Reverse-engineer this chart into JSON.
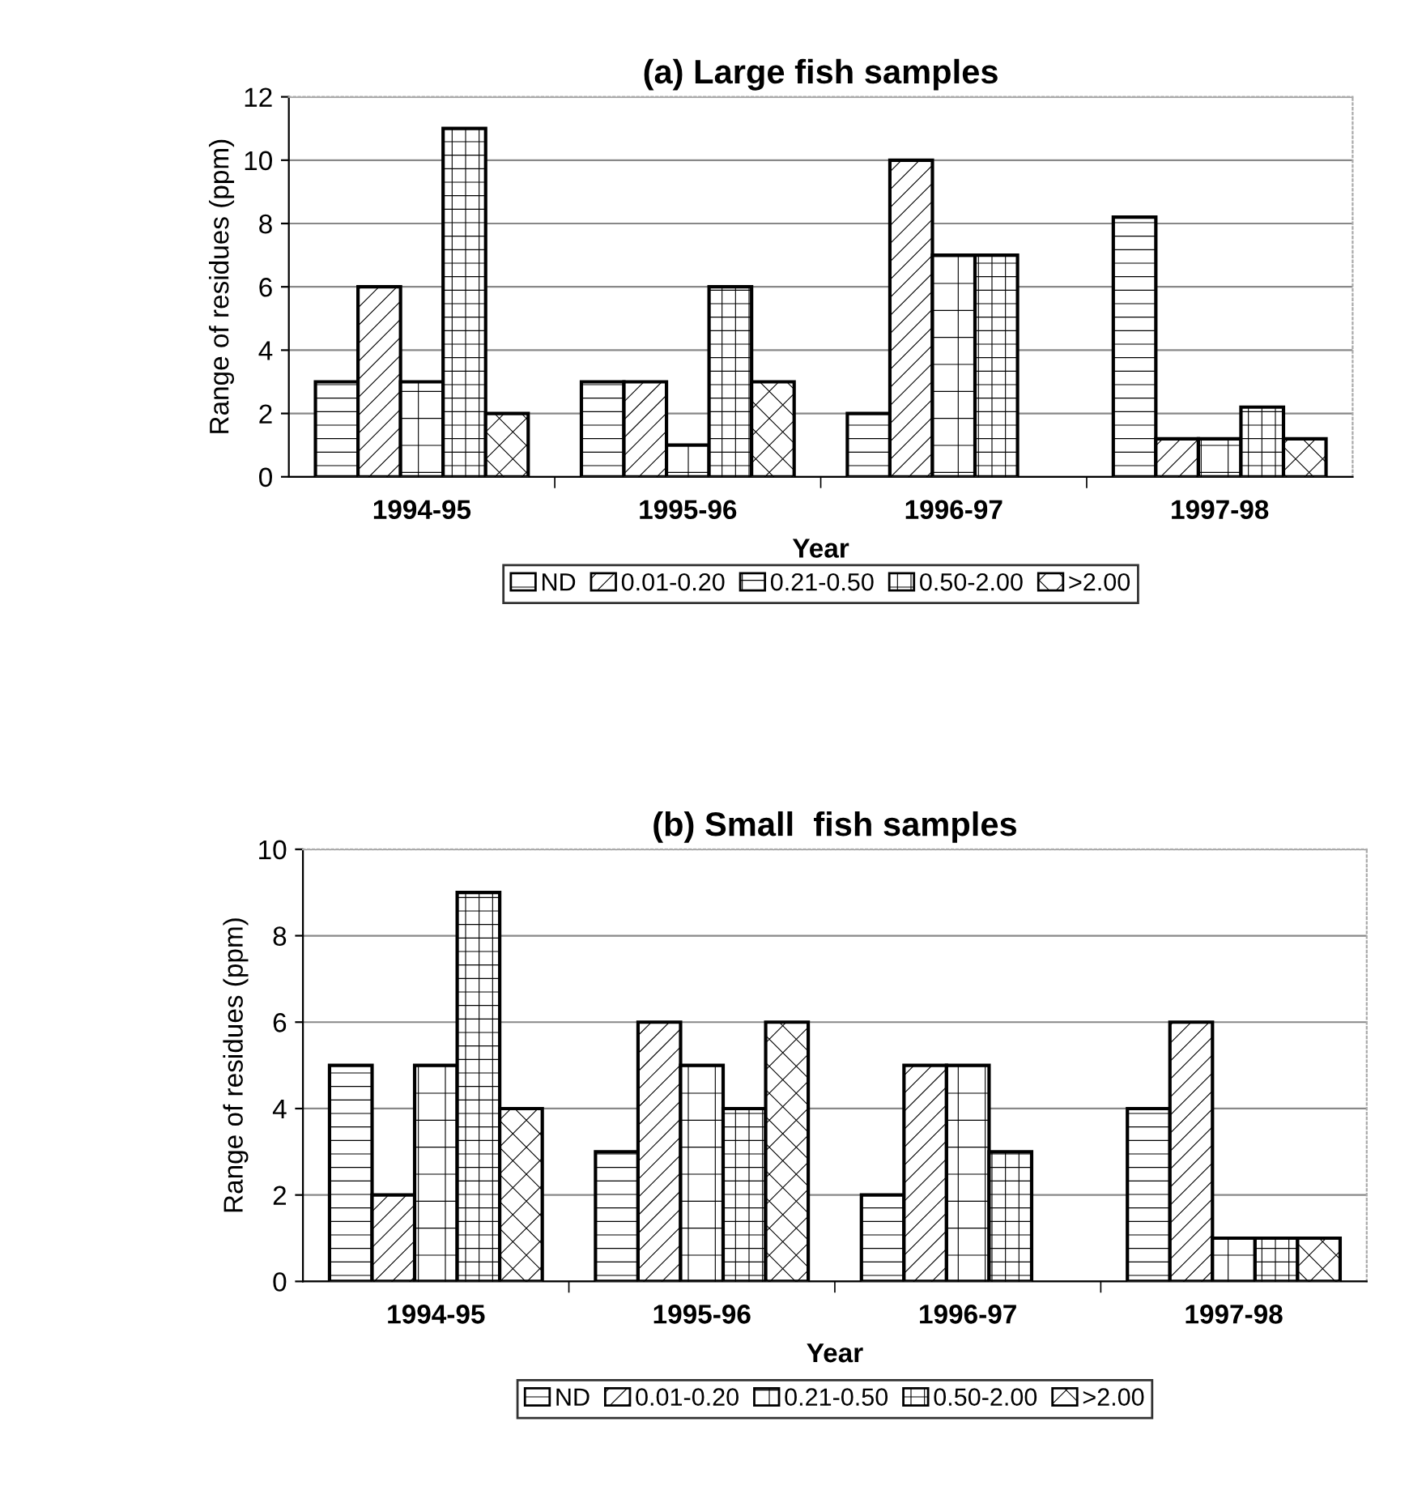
{
  "chart_data": [
    {
      "type": "bar",
      "title": "(a) Large fish samples",
      "xlabel": "Year",
      "ylabel": "Range of residues (ppm)",
      "categories": [
        "1994-95",
        "1995-96",
        "1996-97",
        "1997-98"
      ],
      "series": [
        {
          "name": "ND",
          "color": "#000000",
          "values": [
            3,
            3,
            2,
            8.2
          ]
        },
        {
          "name": "0.01-0.20",
          "color": "#000000",
          "values": [
            6,
            3,
            10,
            1.2
          ]
        },
        {
          "name": "0.21-0.50",
          "color": "#000000",
          "values": [
            3,
            1,
            7,
            1.2
          ]
        },
        {
          "name": "0.50-2.00",
          "color": "#000000",
          "values": [
            11,
            6,
            7,
            2.2
          ]
        },
        {
          "name": ">2.00",
          "color": "#000000",
          "values": [
            2,
            3,
            null,
            1.2
          ]
        }
      ],
      "ylim": [
        0,
        12
      ],
      "yticks": [
        0,
        2,
        4,
        6,
        8,
        10,
        12
      ],
      "grid": "y",
      "legend": "bottom"
    },
    {
      "type": "bar",
      "title": "(b) Small  fish samples",
      "xlabel": "Year",
      "ylabel": "Range of residues (ppm)",
      "categories": [
        "1994-95",
        "1995-96",
        "1996-97",
        "1997-98"
      ],
      "series": [
        {
          "name": "ND",
          "color": "#000000",
          "values": [
            5,
            3,
            2,
            4
          ]
        },
        {
          "name": "0.01-0.20",
          "color": "#000000",
          "values": [
            2,
            6,
            5,
            6
          ]
        },
        {
          "name": "0.21-0.50",
          "color": "#000000",
          "values": [
            5,
            5,
            5,
            1
          ]
        },
        {
          "name": "0.50-2.00",
          "color": "#000000",
          "values": [
            9,
            4,
            3,
            1
          ]
        },
        {
          "name": ">2.00",
          "color": "#000000",
          "values": [
            4,
            6,
            null,
            1
          ]
        }
      ],
      "ylim": [
        0,
        10
      ],
      "yticks": [
        0,
        2,
        4,
        6,
        8,
        10
      ],
      "grid": "y",
      "legend": "bottom"
    }
  ]
}
